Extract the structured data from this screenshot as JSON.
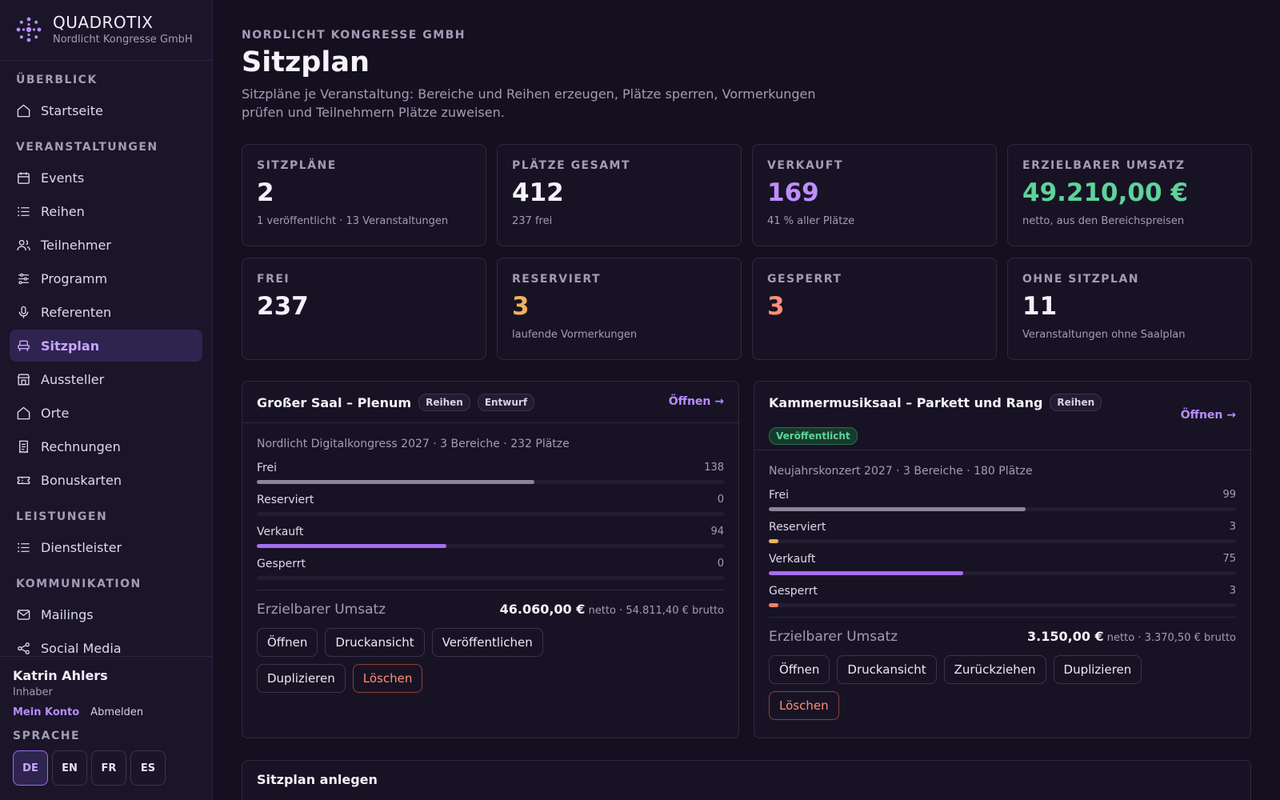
{
  "brand": {
    "name": "QUADROTIX",
    "org": "Nordlicht Kongresse GmbH"
  },
  "nav": {
    "sections": [
      {
        "title": "ÜBERBLICK",
        "items": [
          {
            "label": "Startseite",
            "icon": "home-icon"
          }
        ]
      },
      {
        "title": "VERANSTALTUNGEN",
        "items": [
          {
            "label": "Events",
            "icon": "calendar-icon"
          },
          {
            "label": "Reihen",
            "icon": "list-icon"
          },
          {
            "label": "Teilnehmer",
            "icon": "users-icon"
          },
          {
            "label": "Programm",
            "icon": "sliders-icon"
          },
          {
            "label": "Referenten",
            "icon": "microphone-icon"
          },
          {
            "label": "Sitzplan",
            "icon": "seat-icon",
            "active": true
          },
          {
            "label": "Aussteller",
            "icon": "store-icon"
          },
          {
            "label": "Orte",
            "icon": "home-icon"
          },
          {
            "label": "Rechnungen",
            "icon": "invoice-icon"
          },
          {
            "label": "Bonuskarten",
            "icon": "ticket-icon"
          }
        ]
      },
      {
        "title": "LEISTUNGEN",
        "items": [
          {
            "label": "Dienstleister",
            "icon": "list-icon"
          }
        ]
      },
      {
        "title": "KOMMUNIKATION",
        "items": [
          {
            "label": "Mailings",
            "icon": "mail-icon"
          },
          {
            "label": "Social Media",
            "icon": "share-icon"
          }
        ]
      }
    ]
  },
  "user": {
    "name": "Katrin Ahlers",
    "role": "Inhaber",
    "account_label": "Mein Konto",
    "logout_label": "Abmelden"
  },
  "language": {
    "title": "SPRACHE",
    "options": [
      "DE",
      "EN",
      "FR",
      "ES"
    ],
    "active": "DE"
  },
  "header": {
    "eyebrow": "NORDLICHT KONGRESSE GMBH",
    "title": "Sitzplan",
    "subtitle": "Sitzpläne je Veranstaltung: Bereiche und Reihen erzeugen, Plätze sperren, Vormerkungen prüfen und Teilnehmern Plätze zuweisen."
  },
  "stats": [
    {
      "label": "SITZPLÄNE",
      "value": "2",
      "sub": "1 veröffentlicht · 13 Veranstaltungen",
      "color": "#f5f2fb"
    },
    {
      "label": "PLÄTZE GESAMT",
      "value": "412",
      "sub": "237 frei",
      "color": "#f5f2fb"
    },
    {
      "label": "VERKAUFT",
      "value": "169",
      "sub": "41 % aller Plätze",
      "color": "#c18cff"
    },
    {
      "label": "ERZIELBARER UMSATZ",
      "value": "49.210,00 €",
      "sub": "netto, aus den Bereichspreisen",
      "color": "#5dd39a"
    },
    {
      "label": "FREI",
      "value": "237",
      "sub": "",
      "color": "#f5f2fb"
    },
    {
      "label": "RESERVIERT",
      "value": "3",
      "sub": "laufende Vormerkungen",
      "color": "#f0b25a"
    },
    {
      "label": "GESPERRT",
      "value": "3",
      "sub": "",
      "color": "#ff8e7a"
    },
    {
      "label": "OHNE SITZPLAN",
      "value": "11",
      "sub": "Veranstaltungen ohne Saalplan",
      "color": "#f5f2fb"
    }
  ],
  "colors": {
    "frei": "#8c8699",
    "reserviert": "#f0b25a",
    "verkauft": "#a56ef0",
    "gesperrt": "#ff7a66"
  },
  "plans": [
    {
      "title": "Großer Saal – Plenum",
      "badges": [
        "Reihen",
        "Entwurf"
      ],
      "open_label": "Öffnen",
      "meta": "Nordlicht Digitalkongress 2027 · 3 Bereiche · 232 Plätze",
      "total": 232,
      "rows": [
        {
          "label": "Frei",
          "value": 138,
          "key": "frei"
        },
        {
          "label": "Reserviert",
          "value": 0,
          "key": "reserviert"
        },
        {
          "label": "Verkauft",
          "value": 94,
          "key": "verkauft"
        },
        {
          "label": "Gesperrt",
          "value": 0,
          "key": "gesperrt"
        }
      ],
      "revenue_label": "Erzielbarer Umsatz",
      "revenue_net": "46.060,00 €",
      "revenue_rest": "netto · 54.811,40 € brutto",
      "actions": [
        "Öffnen",
        "Druckansicht",
        "Veröffentlichen",
        "Duplizieren"
      ],
      "delete_label": "Löschen"
    },
    {
      "title": "Kammermusiksaal – Parkett und Rang",
      "badges": [
        "Reihen",
        "Veröffentlicht"
      ],
      "open_label": "Öffnen",
      "meta": "Neujahrskonzert 2027 · 3 Bereiche · 180 Plätze",
      "total": 180,
      "rows": [
        {
          "label": "Frei",
          "value": 99,
          "key": "frei"
        },
        {
          "label": "Reserviert",
          "value": 3,
          "key": "reserviert"
        },
        {
          "label": "Verkauft",
          "value": 75,
          "key": "verkauft"
        },
        {
          "label": "Gesperrt",
          "value": 3,
          "key": "gesperrt"
        }
      ],
      "revenue_label": "Erzielbarer Umsatz",
      "revenue_net": "3.150,00 €",
      "revenue_rest": "netto · 3.370,50 € brutto",
      "actions": [
        "Öffnen",
        "Druckansicht",
        "Zurückziehen",
        "Duplizieren"
      ],
      "delete_label": "Löschen"
    }
  ],
  "new_plan": {
    "title": "Sitzplan anlegen"
  }
}
